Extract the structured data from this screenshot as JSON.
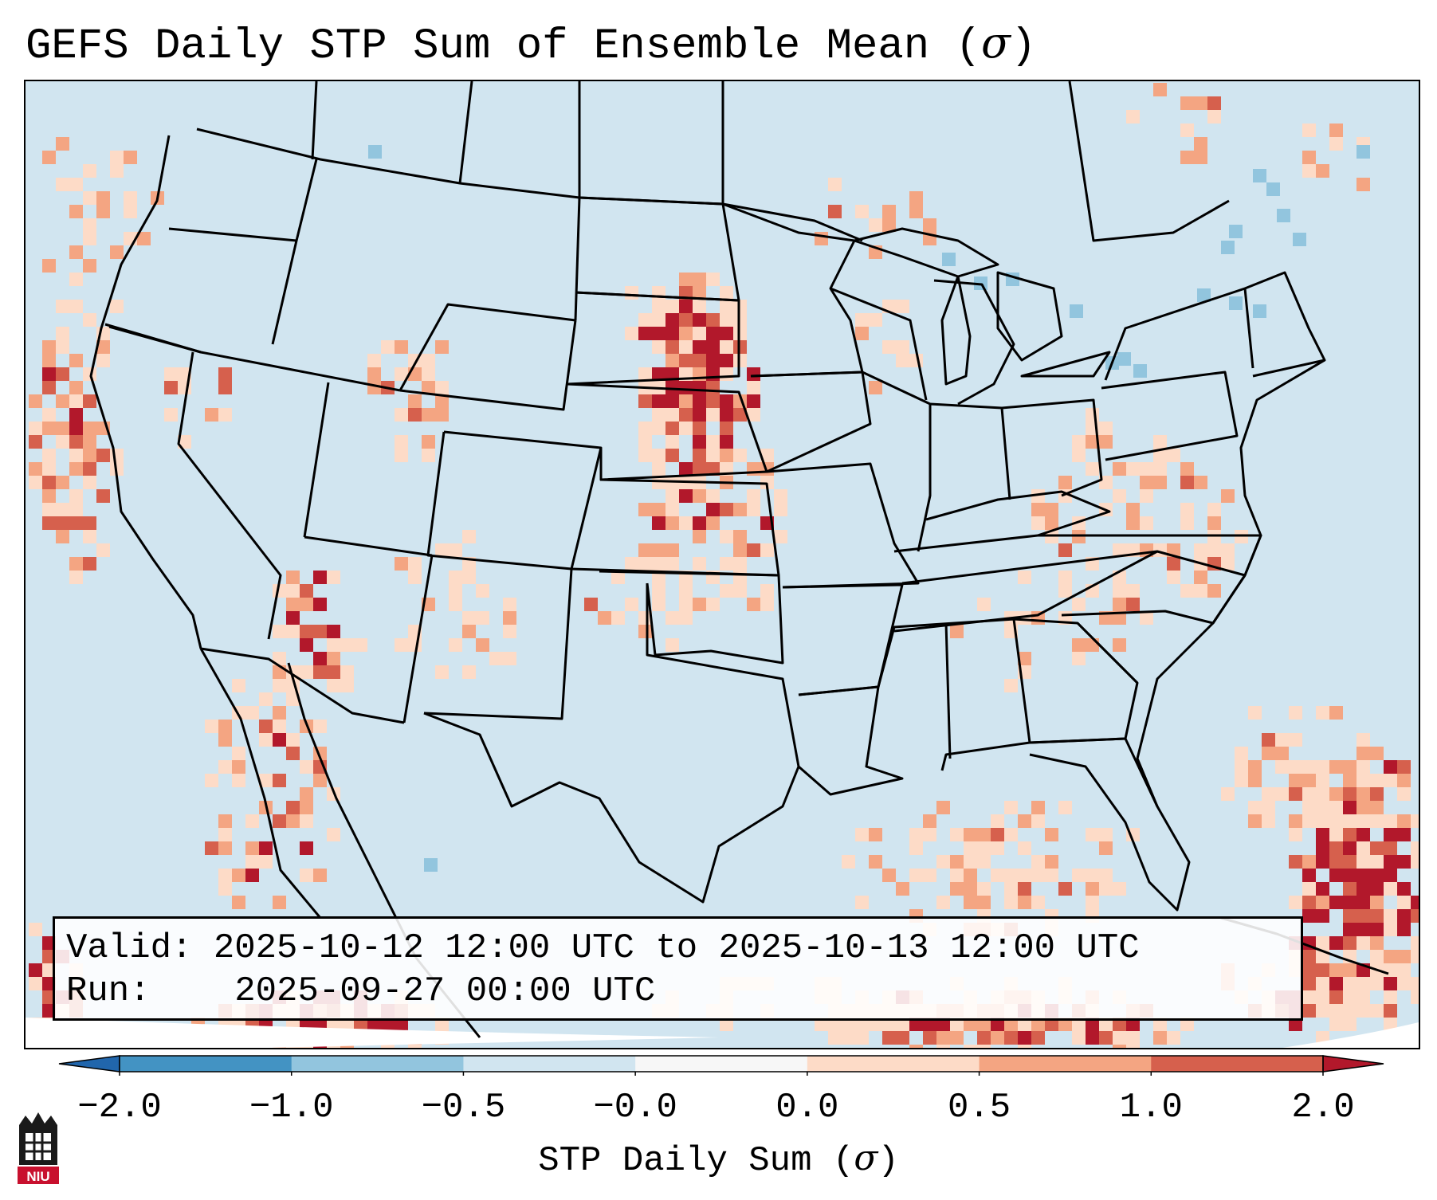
{
  "title": {
    "prefix": "GEFS Daily STP Sum of Ensemble Mean (",
    "symbol": "σ",
    "suffix": ")"
  },
  "info": {
    "valid_label": "Valid:",
    "valid_value": "2025-10-12 12:00 UTC to 2025-10-13 12:00 UTC",
    "run_label": "Run:",
    "run_value": "2025-09-27 00:00 UTC"
  },
  "colorbar": {
    "label_prefix": "STP Daily Sum (",
    "label_symbol": "σ",
    "label_suffix": ")",
    "ticks": [
      "−2.0",
      "−1.0",
      "−0.5",
      "−0.0",
      "0.0",
      "0.5",
      "1.0",
      "2.0"
    ],
    "bins": [
      {
        "from": -2.0,
        "to": -1.0,
        "color": "#4393c3"
      },
      {
        "from": -1.0,
        "to": -0.5,
        "color": "#92c5de"
      },
      {
        "from": -0.5,
        "to": -0.0,
        "color": "#d1e5f0"
      },
      {
        "from": -0.0,
        "to": 0.0,
        "color": "#f7f7f7"
      },
      {
        "from": 0.0,
        "to": 0.5,
        "color": "#fddbc7"
      },
      {
        "from": 0.5,
        "to": 1.0,
        "color": "#f4a582"
      },
      {
        "from": 1.0,
        "to": 2.0,
        "color": "#d6604d"
      }
    ],
    "under_color": "#2166ac",
    "over_color": "#b2182b"
  },
  "colors": {
    "background": "#d1e5f0",
    "light_pos": "#fddbc7",
    "mid_pos": "#f4a582",
    "high_pos": "#d6604d",
    "max_pos": "#b2182b",
    "light_neg": "#92c5de",
    "neutral": "#f7f7f7"
  },
  "logo": {
    "text": "NIU"
  }
}
